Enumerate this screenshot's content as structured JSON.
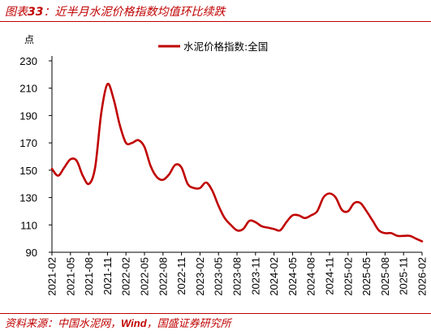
{
  "header": {
    "prefix": "图表",
    "number": "33",
    "title": "近半月水泥价格指数均值环比续跌"
  },
  "footer": {
    "source_prefix": "资料来源：中国水泥网，",
    "source_wind": "Wind",
    "source_suffix": "，国盛证券研究所"
  },
  "colors": {
    "accent": "#c00000",
    "line": "#c00000",
    "axis": "#000000"
  },
  "chart_data": {
    "type": "line",
    "y_unit": "点",
    "ylim": [
      90,
      230
    ],
    "y_ticks": [
      90,
      110,
      130,
      150,
      170,
      190,
      210,
      230
    ],
    "x_ticks": [
      "2021-02",
      "2021-05",
      "2021-08",
      "2021-11",
      "2022-02",
      "2022-05",
      "2022-08",
      "2022-11",
      "2023-02",
      "2023-05",
      "2023-08",
      "2023-11",
      "2024-02",
      "2024-05",
      "2024-08",
      "2024-11",
      "2025-02",
      "2025-05",
      "2025-08",
      "2025-11",
      "2026-02"
    ],
    "grid": false,
    "legend_position": "top-center",
    "series": [
      {
        "name": "水泥价格指数:全国",
        "color": "#c00000",
        "points": [
          [
            "2021-02",
            151
          ],
          [
            "2021-03",
            146
          ],
          [
            "2021-04",
            152
          ],
          [
            "2021-05",
            158
          ],
          [
            "2021-06",
            157
          ],
          [
            "2021-07",
            146
          ],
          [
            "2021-08",
            140
          ],
          [
            "2021-09",
            152
          ],
          [
            "2021-10",
            192
          ],
          [
            "2021-11",
            213
          ],
          [
            "2021-12",
            202
          ],
          [
            "2022-01",
            183
          ],
          [
            "2022-02",
            170
          ],
          [
            "2022-03",
            170
          ],
          [
            "2022-04",
            172
          ],
          [
            "2022-05",
            167
          ],
          [
            "2022-06",
            153
          ],
          [
            "2022-07",
            145
          ],
          [
            "2022-08",
            143
          ],
          [
            "2022-09",
            147
          ],
          [
            "2022-10",
            154
          ],
          [
            "2022-11",
            152
          ],
          [
            "2022-12",
            140
          ],
          [
            "2023-01",
            137
          ],
          [
            "2023-02",
            137
          ],
          [
            "2023-03",
            141
          ],
          [
            "2023-04",
            135
          ],
          [
            "2023-05",
            124
          ],
          [
            "2023-06",
            115
          ],
          [
            "2023-07",
            110
          ],
          [
            "2023-08",
            106
          ],
          [
            "2023-09",
            107
          ],
          [
            "2023-10",
            113
          ],
          [
            "2023-11",
            112
          ],
          [
            "2023-12",
            109
          ],
          [
            "2024-01",
            108
          ],
          [
            "2024-02",
            107
          ],
          [
            "2024-03",
            106
          ],
          [
            "2024-04",
            112
          ],
          [
            "2024-05",
            117
          ],
          [
            "2024-06",
            117
          ],
          [
            "2024-07",
            115
          ],
          [
            "2024-08",
            117
          ],
          [
            "2024-09",
            120
          ],
          [
            "2024-10",
            130
          ],
          [
            "2024-11",
            133
          ],
          [
            "2024-12",
            130
          ],
          [
            "2025-01",
            121
          ],
          [
            "2025-02",
            120
          ],
          [
            "2025-03",
            126
          ],
          [
            "2025-04",
            126
          ],
          [
            "2025-05",
            120
          ],
          [
            "2025-06",
            113
          ],
          [
            "2025-07",
            106
          ],
          [
            "2025-08",
            104
          ],
          [
            "2025-09",
            104
          ],
          [
            "2025-10",
            102
          ],
          [
            "2025-11",
            102
          ],
          [
            "2025-12",
            102
          ],
          [
            "2026-01",
            100
          ],
          [
            "2026-02",
            98
          ]
        ]
      }
    ]
  }
}
